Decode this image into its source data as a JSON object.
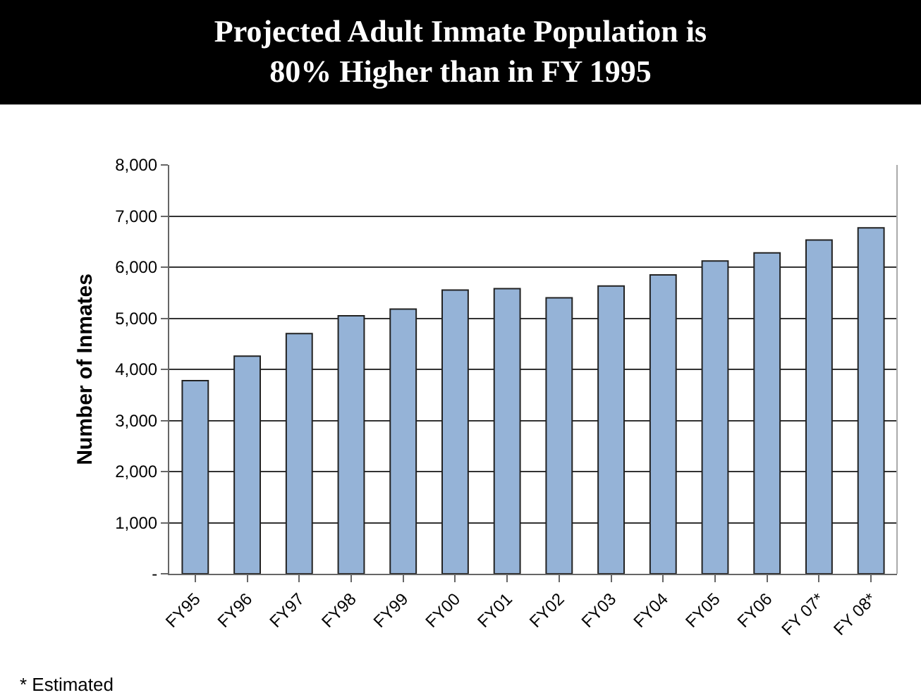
{
  "chart_data": {
    "type": "bar",
    "title": "Projected Adult Inmate Population is\n80% Higher than in FY 1995",
    "ylabel": "Number of Inmates",
    "categories": [
      "FY95",
      "FY96",
      "FY97",
      "FY98",
      "FY99",
      "FY00",
      "FY01",
      "FY02",
      "FY03",
      "FY04",
      "FY05",
      "FY06",
      "FY 07*",
      "FY 08*"
    ],
    "values": [
      3780,
      4260,
      4700,
      5050,
      5180,
      5550,
      5580,
      5400,
      5630,
      5850,
      6120,
      6280,
      6530,
      6770
    ],
    "color": "#95b3d7",
    "ylim": [
      0,
      8000
    ],
    "yticks": [
      {
        "value": 0,
        "label": "-"
      },
      {
        "value": 1000,
        "label": "1,000"
      },
      {
        "value": 2000,
        "label": "2,000"
      },
      {
        "value": 3000,
        "label": "3,000"
      },
      {
        "value": 4000,
        "label": "4,000"
      },
      {
        "value": 5000,
        "label": "5,000"
      },
      {
        "value": 6000,
        "label": "6,000"
      },
      {
        "value": 7000,
        "label": "7,000"
      },
      {
        "value": 8000,
        "label": "8,000"
      }
    ],
    "grid": "y",
    "annotations": [
      "* Estimated"
    ]
  }
}
